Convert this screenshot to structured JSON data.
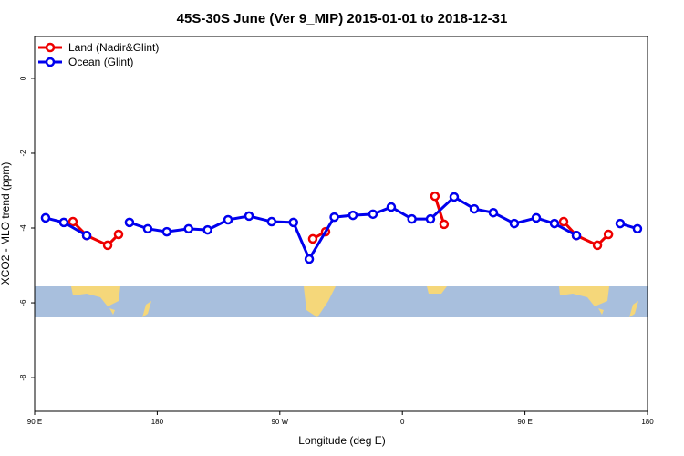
{
  "chart_data": {
    "type": "line",
    "title": "45S-30S June (Ver 9_MIP)   2015-01-01 to 2018-12-31",
    "x_label": "Longitude (deg E)",
    "y_label": "XCO2 - MLO trend (ppm)",
    "xlim": [
      90,
      540
    ],
    "ylim": [
      -8.9,
      1.12
    ],
    "xticks": [
      {
        "value": 90,
        "label": "90 E"
      },
      {
        "value": 180,
        "label": "180"
      },
      {
        "value": 270,
        "label": "90 W"
      },
      {
        "value": 360,
        "label": "0"
      },
      {
        "value": 450,
        "label": "90 E"
      },
      {
        "value": 540,
        "label": "180"
      }
    ],
    "yticks": [
      0,
      -2,
      -4,
      -6,
      -8
    ],
    "legend": "top-left",
    "series": [
      {
        "name": "Land (Nadir&Glint)",
        "color": "#ee0000",
        "x": [
          118.1,
          128.2,
          143.6,
          151.6,
          220,
          294.2,
          303.6,
          340,
          383.9,
          390.6,
          430,
          478.4,
          487.8,
          503.2,
          511.3
        ],
        "values": [
          -3.83,
          -4.2,
          -4.46,
          -4.17,
          null,
          -4.29,
          -4.1,
          null,
          -3.15,
          -3.9,
          null,
          -3.83,
          -4.2,
          -4.46,
          -4.17
        ]
      },
      {
        "name": "Ocean (Glint)",
        "color": "#0000ee",
        "x": [
          98,
          111.4,
          128.2,
          145,
          159.6,
          173,
          187,
          203,
          217,
          232,
          247.4,
          264,
          280,
          291.6,
          310,
          323.7,
          338.4,
          351.8,
          367,
          380.6,
          398,
          412.8,
          426.8,
          442.2,
          458.3,
          471.7,
          487.8,
          505,
          519.9,
          532.6
        ],
        "values": [
          -3.73,
          -3.85,
          -4.2,
          null,
          -3.85,
          -4.02,
          -4.1,
          -4.02,
          -4.05,
          -3.78,
          -3.68,
          -3.83,
          -3.85,
          -4.83,
          -3.71,
          -3.66,
          -3.63,
          -3.44,
          -3.76,
          -3.76,
          -3.17,
          -3.49,
          -3.59,
          -3.88,
          -3.73,
          -3.88,
          -4.2,
          null,
          -3.88,
          -4.02
        ]
      }
    ]
  }
}
